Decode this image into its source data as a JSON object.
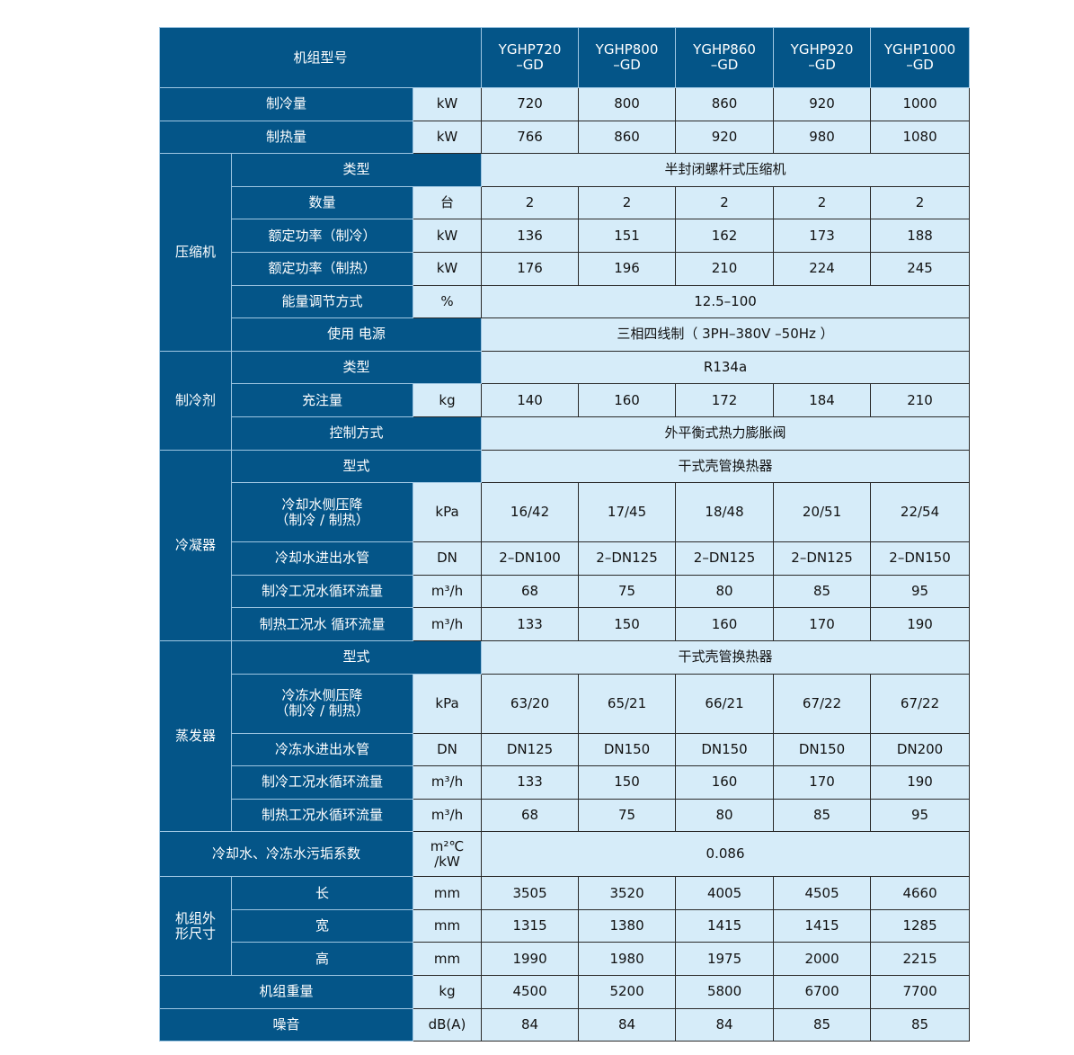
{
  "colors": {
    "header_bg": "#045588",
    "cell_bg": "#d6ecf9"
  },
  "header": {
    "label": "机组型号",
    "models": [
      "YGHP720\n–GD",
      "YGHP800\n–GD",
      "YGHP860\n–GD",
      "YGHP920\n–GD",
      "YGHP1000\n–GD"
    ]
  },
  "sections": [
    {
      "rows": [
        {
          "label": "制冷量",
          "unit": "kW",
          "values": [
            "720",
            "800",
            "860",
            "920",
            "1000"
          ]
        }
      ]
    },
    {
      "rows": [
        {
          "label": "制热量",
          "unit": "kW",
          "values": [
            "766",
            "860",
            "920",
            "980",
            "1080"
          ]
        }
      ]
    },
    {
      "group": "压缩机",
      "rows": [
        {
          "label": "类型",
          "span": "半封闭螺杆式压缩机"
        },
        {
          "label": "数量",
          "unit": "台",
          "values": [
            "2",
            "2",
            "2",
            "2",
            "2"
          ]
        },
        {
          "label": "额定功率（制冷）",
          "unit": "kW",
          "values": [
            "136",
            "151",
            "162",
            "173",
            "188"
          ]
        },
        {
          "label": "额定功率（制热）",
          "unit": "kW",
          "values": [
            "176",
            "196",
            "210",
            "224",
            "245"
          ]
        },
        {
          "label": "能量调节方式",
          "unit": "%",
          "span": "12.5–100"
        },
        {
          "label": "使用 电源",
          "span": "三相四线制（  3PH–380V –50Hz  ）"
        }
      ]
    },
    {
      "group": "制冷剂",
      "rows": [
        {
          "label": "类型",
          "span": "R134a"
        },
        {
          "label": "充注量",
          "unit": "kg",
          "values": [
            "140",
            "160",
            "172",
            "184",
            "210"
          ]
        },
        {
          "label": "控制方式",
          "span": "外平衡式热力膨胀阀"
        }
      ]
    },
    {
      "group": "冷凝器",
      "rows": [
        {
          "label": "型式",
          "span": "干式壳管换热器"
        },
        {
          "label": "冷却水侧压降\n（制冷 / 制热）",
          "unit": "kPa",
          "tall": true,
          "values": [
            "16/42",
            "17/45",
            "18/48",
            "20/51",
            "22/54"
          ]
        },
        {
          "label": "冷却水进出水管",
          "unit": "DN",
          "values": [
            "2–DN100",
            "2–DN125",
            "2–DN125",
            "2–DN125",
            "2–DN150"
          ]
        },
        {
          "label": "制冷工况水循环流量",
          "unit": "m³/h",
          "values": [
            "68",
            "75",
            "80",
            "85",
            "95"
          ]
        },
        {
          "label": "制热工况水  循环流量",
          "unit": "m³/h",
          "values": [
            "133",
            "150",
            "160",
            "170",
            "190"
          ]
        }
      ]
    },
    {
      "group": "蒸发器",
      "rows": [
        {
          "label": "型式",
          "span": "干式壳管换热器"
        },
        {
          "label": "冷冻水侧压降\n（制冷 / 制热）",
          "unit": "kPa",
          "tall": true,
          "values": [
            "63/20",
            "65/21",
            "66/21",
            "67/22",
            "67/22"
          ]
        },
        {
          "label": "冷冻水进出水管",
          "unit": "DN",
          "values": [
            "DN125",
            "DN150",
            "DN150",
            "DN150",
            "DN200"
          ]
        },
        {
          "label": "制冷工况水循环流量",
          "unit": "m³/h",
          "values": [
            "133",
            "150",
            "160",
            "170",
            "190"
          ]
        },
        {
          "label": "制热工况水循环流量",
          "unit": "m³/h",
          "values": [
            "68",
            "75",
            "80",
            "85",
            "95"
          ]
        }
      ]
    },
    {
      "rows": [
        {
          "label": "冷却水、冷冻水污垢系数",
          "unit": "m²℃\n/kW",
          "mid": true,
          "span": "0.086"
        }
      ]
    },
    {
      "group": "机组外\n形尺寸",
      "rows": [
        {
          "label": "长",
          "unit": "mm",
          "values": [
            "3505",
            "3520",
            "4005",
            "4505",
            "4660"
          ]
        },
        {
          "label": "宽",
          "unit": "mm",
          "values": [
            "1315",
            "1380",
            "1415",
            "1415",
            "1285"
          ]
        },
        {
          "label": "高",
          "unit": "mm",
          "values": [
            "1990",
            "1980",
            "1975",
            "2000",
            "2215"
          ]
        }
      ]
    },
    {
      "rows": [
        {
          "label": "机组重量",
          "unit": "kg",
          "values": [
            "4500",
            "5200",
            "5800",
            "6700",
            "7700"
          ]
        }
      ]
    },
    {
      "rows": [
        {
          "label": "噪音",
          "unit": "dB(A)",
          "values": [
            "84",
            "84",
            "84",
            "85",
            "85"
          ]
        }
      ]
    }
  ]
}
